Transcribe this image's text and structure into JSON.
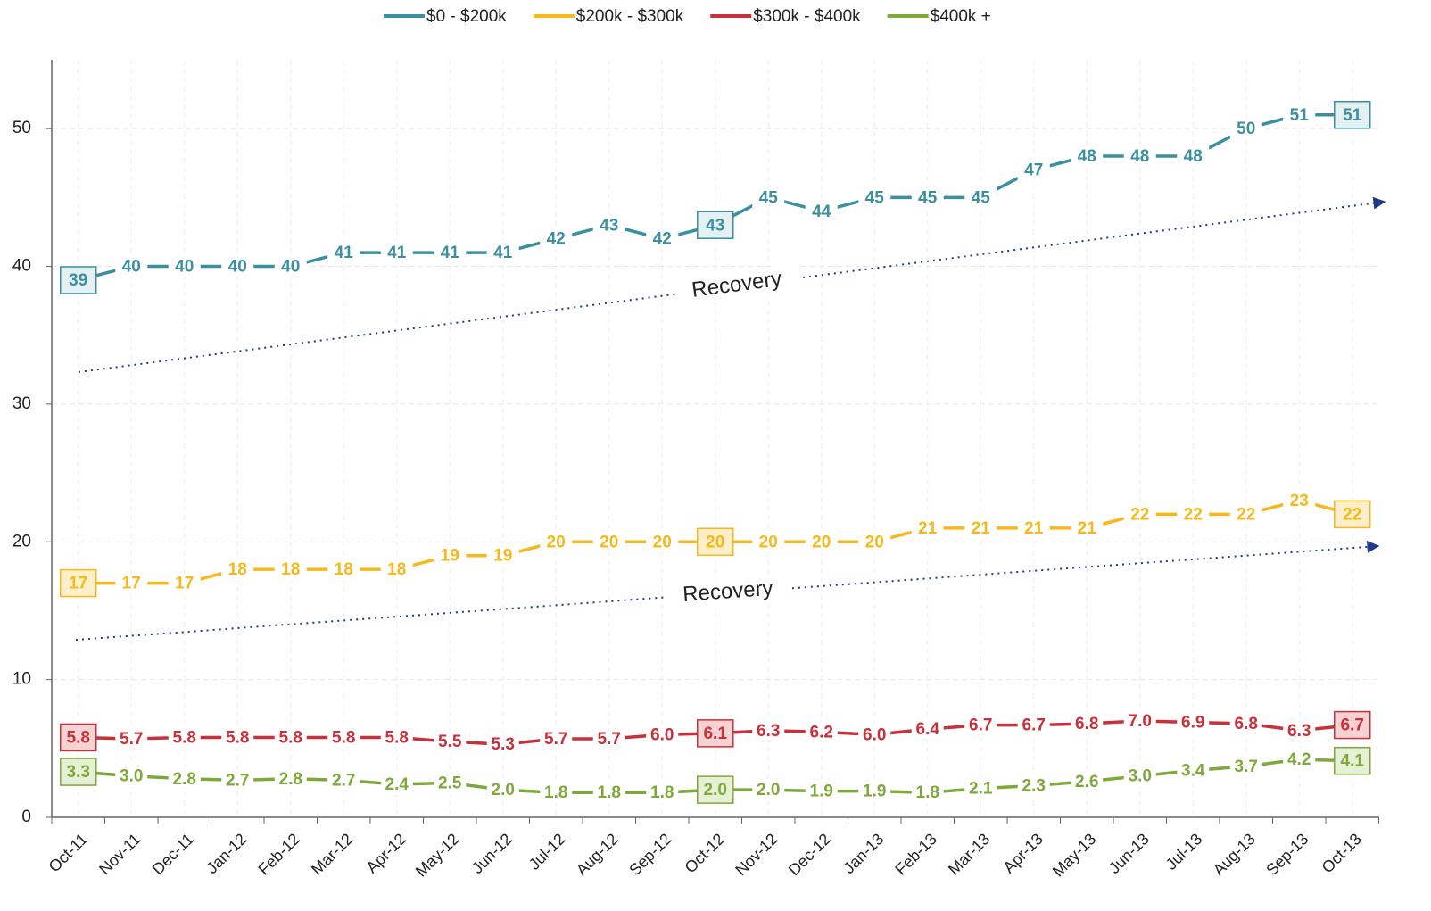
{
  "chart_data": {
    "type": "line",
    "categories": [
      "Oct-11",
      "Nov-11",
      "Dec-11",
      "Jan-12",
      "Feb-12",
      "Mar-12",
      "Apr-12",
      "May-12",
      "Jun-12",
      "Jul-12",
      "Aug-12",
      "Sep-12",
      "Oct-12",
      "Nov-12",
      "Dec-12",
      "Jan-13",
      "Feb-13",
      "Mar-13",
      "Apr-13",
      "May-13",
      "Jun-13",
      "Jul-13",
      "Aug-13",
      "Sep-13",
      "Oct-13"
    ],
    "series": [
      {
        "name": "$0 - $200k",
        "color": "#3a8fa0",
        "values": [
          39,
          40,
          40,
          40,
          40,
          41,
          41,
          41,
          41,
          42,
          43,
          42,
          43,
          45,
          44,
          45,
          45,
          45,
          47,
          48,
          48,
          48,
          50,
          51,
          51
        ]
      },
      {
        "name": "$200k - $300k",
        "color": "#f6b81a",
        "values": [
          17,
          17,
          17,
          18,
          18,
          18,
          18,
          19,
          19,
          20,
          20,
          20,
          20,
          20,
          20,
          20,
          21,
          21,
          21,
          21,
          22,
          22,
          22,
          23,
          22
        ]
      },
      {
        "name": "$300k - $400k",
        "color": "#c8303a",
        "values": [
          5.8,
          5.7,
          5.8,
          5.8,
          5.8,
          5.8,
          5.8,
          5.5,
          5.3,
          5.7,
          5.7,
          6.0,
          6.1,
          6.3,
          6.2,
          6.0,
          6.4,
          6.7,
          6.7,
          6.8,
          7.0,
          6.9,
          6.8,
          6.3,
          6.7
        ],
        "value_labels": [
          "5.8",
          "5.7",
          "5.8",
          "5.8",
          "5.8",
          "5.8",
          "5.8",
          "5.5",
          "5.3",
          "5.7",
          "5.7",
          "6.0",
          "6.1",
          "6.3",
          "6.2",
          "6.0",
          "6.4",
          "6.7",
          "6.7",
          "6.8",
          "7.0",
          "6.9",
          "6.8",
          "6.3",
          "6.7"
        ]
      },
      {
        "name": "$400k +",
        "color": "#7fa83a",
        "values": [
          3.3,
          3.0,
          2.8,
          2.7,
          2.8,
          2.7,
          2.4,
          2.5,
          2.0,
          1.8,
          1.8,
          1.8,
          2.0,
          2.0,
          1.9,
          1.9,
          1.8,
          2.1,
          2.3,
          2.6,
          3.0,
          3.4,
          3.7,
          4.2,
          4.1
        ],
        "value_labels": [
          "3.3",
          "3.0",
          "2.8",
          "2.7",
          "2.8",
          "2.7",
          "2.4",
          "2.5",
          "2.0",
          "1.8",
          "1.8",
          "1.8",
          "2.0",
          "2.0",
          "1.9",
          "1.9",
          "1.8",
          "2.1",
          "2.3",
          "2.6",
          "3.0",
          "3.4",
          "3.7",
          "4.2",
          "4.1"
        ]
      }
    ],
    "annotations": [
      "Recovery",
      "Recovery"
    ],
    "ylim": [
      0,
      55
    ],
    "yticks": [
      0,
      10,
      20,
      30,
      40,
      50
    ],
    "grid": true,
    "legend": "top"
  }
}
